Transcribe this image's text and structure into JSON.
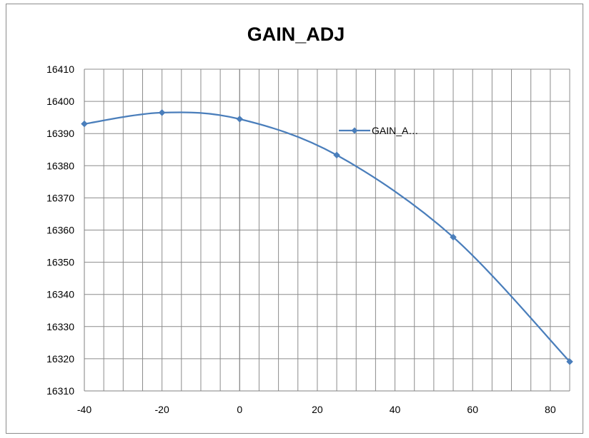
{
  "chart_data": {
    "type": "line",
    "title": "GAIN_ADJ",
    "xlabel": "",
    "ylabel": "",
    "xlim": [
      -40,
      85
    ],
    "ylim": [
      16310,
      16410
    ],
    "x_ticks": [
      -40,
      -20,
      0,
      20,
      40,
      60,
      80
    ],
    "y_ticks": [
      16310,
      16320,
      16330,
      16340,
      16350,
      16360,
      16370,
      16380,
      16390,
      16400,
      16410
    ],
    "grid": true,
    "legend_position": "right",
    "smooth": true,
    "series": [
      {
        "name": "GAIN_A…",
        "color": "#4a7ebb",
        "marker": "diamond",
        "x": [
          -40,
          -20,
          0,
          25,
          55,
          85
        ],
        "y": [
          16393,
          16396.5,
          16394.5,
          16383.3,
          16357.8,
          16319.1
        ]
      }
    ]
  }
}
